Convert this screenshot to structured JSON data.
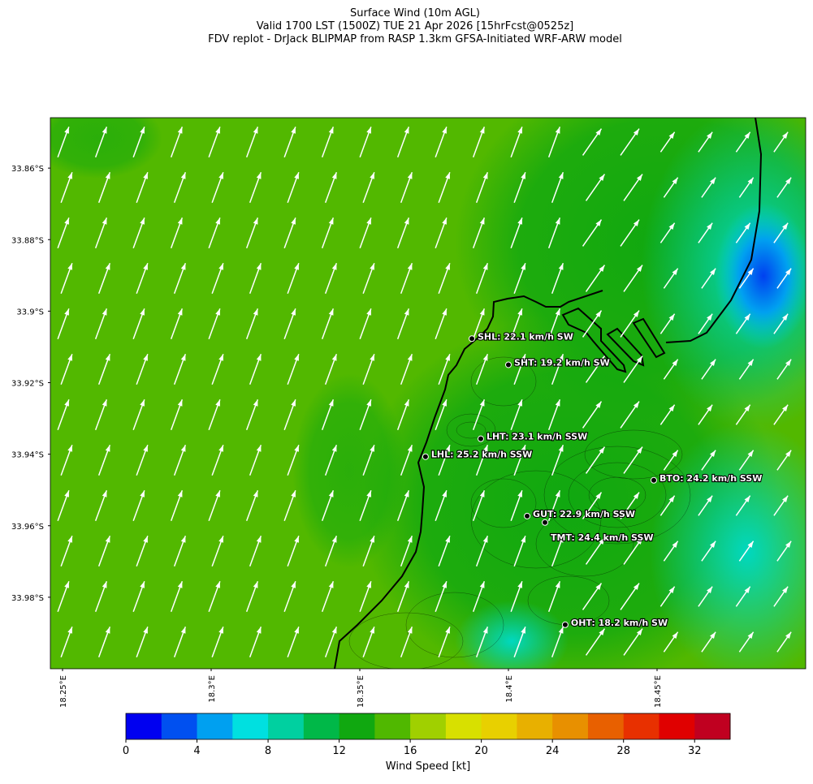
{
  "title": [
    "Surface Wind (10m AGL)",
    "Valid 1700 LST (1500Z) TUE 21 Apr 2026 [15hrFcst@0525z]",
    "FDV replot - DrJack BLIPMAP from RASP 1.3km GFSA-Initiated WRF-ARW model"
  ],
  "map": {
    "lonlim": [
      18.2459,
      18.5
    ],
    "latlim": [
      -34.0,
      -33.8459
    ],
    "lat_ticks": [
      {
        "value": -33.86,
        "label": "33.86°S"
      },
      {
        "value": -33.88,
        "label": "33.88°S"
      },
      {
        "value": -33.9,
        "label": "33.9°S"
      },
      {
        "value": -33.92,
        "label": "33.92°S"
      },
      {
        "value": -33.94,
        "label": "33.94°S"
      },
      {
        "value": -33.96,
        "label": "33.96°S"
      },
      {
        "value": -33.98,
        "label": "33.98°S"
      }
    ],
    "lon_ticks": [
      {
        "value": 18.25,
        "label": "18.25°E"
      },
      {
        "value": 18.3,
        "label": "18.3°E"
      },
      {
        "value": 18.35,
        "label": "18.35°E"
      },
      {
        "value": 18.4,
        "label": "18.4°E"
      },
      {
        "value": 18.45,
        "label": "18.45°E"
      }
    ],
    "stations": [
      {
        "label": "SHL: 22.1 km/h SW",
        "lon": 18.3877,
        "lat": -33.9077
      },
      {
        "label": "SHT: 19.2 km/h SW",
        "lon": 18.4,
        "lat": -33.915
      },
      {
        "label": "LHT: 23.1 km/h SSW",
        "lon": 18.3907,
        "lat": -33.9357
      },
      {
        "label": "LHL: 25.2 km/h SSW",
        "lon": 18.3721,
        "lat": -33.9407
      },
      {
        "label": "BTO: 24.2 km/h SSW",
        "lon": 18.4489,
        "lat": -33.9473
      },
      {
        "label": "GUT: 22.9 km/h SSW",
        "lon": 18.4063,
        "lat": -33.9573
      },
      {
        "label": "TMT: 24.4 km/h SSW",
        "lon": 18.4123,
        "lat": -33.9591
      },
      {
        "label": "OHT: 18.2 km/h SW",
        "lon": 18.4191,
        "lat": -33.9877
      }
    ]
  },
  "colorbar": {
    "label": "Wind Speed [kt]",
    "lim": [
      0,
      34
    ],
    "ticks": [
      0,
      4,
      8,
      12,
      16,
      20,
      24,
      28,
      32
    ],
    "colors": [
      "#0000f0",
      "#0050f0",
      "#00a0f0",
      "#00e0e0",
      "#00d0a0",
      "#00b848",
      "#10a810",
      "#50b800",
      "#a0d000",
      "#d8e000",
      "#e8d000",
      "#e8b000",
      "#e89000",
      "#e86000",
      "#e83000",
      "#e00000",
      "#c00020"
    ]
  }
}
